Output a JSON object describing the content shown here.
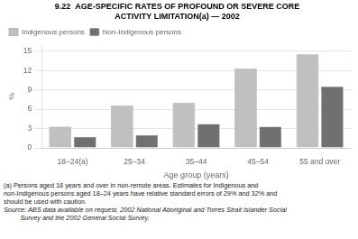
{
  "chart_data": {
    "type": "bar",
    "title": [
      "9.22  AGE-SPECIFIC RATES OF PROFOUND OR SEVERE CORE",
      "ACTIVITY LIMITATION(a) — 2002"
    ],
    "categories": [
      "18–24(a)",
      "25–34",
      "35–44",
      "45–54",
      "55 and over"
    ],
    "series": [
      {
        "name": "Indigenous persons",
        "color": "#c0c0c0",
        "values": [
          3.3,
          6.6,
          7.0,
          12.3,
          14.5
        ]
      },
      {
        "name": "Non-Indigenous persons",
        "color": "#707070",
        "values": [
          1.7,
          2.0,
          3.7,
          3.3,
          9.5
        ]
      }
    ],
    "xlabel": "Age group (years)",
    "ylabel": "%",
    "ylim": [
      0,
      16
    ],
    "yticks": [
      0,
      3,
      6,
      9,
      12,
      15
    ],
    "grid": true,
    "legend": "upper left",
    "annotations": [
      "(a) Persons aged 18 years and over in non-remote areas. Estimates for Indigenous and",
      "non-Indigenous persons aged 18–24 years have relative standard errors of 29% and 32% and",
      "should be used with caution.",
      "Source: ABS data available on request, 2002 National Aboriginal and Torres Strait Islander Social",
      "         Survey and the 2002 General Social Survey."
    ]
  }
}
